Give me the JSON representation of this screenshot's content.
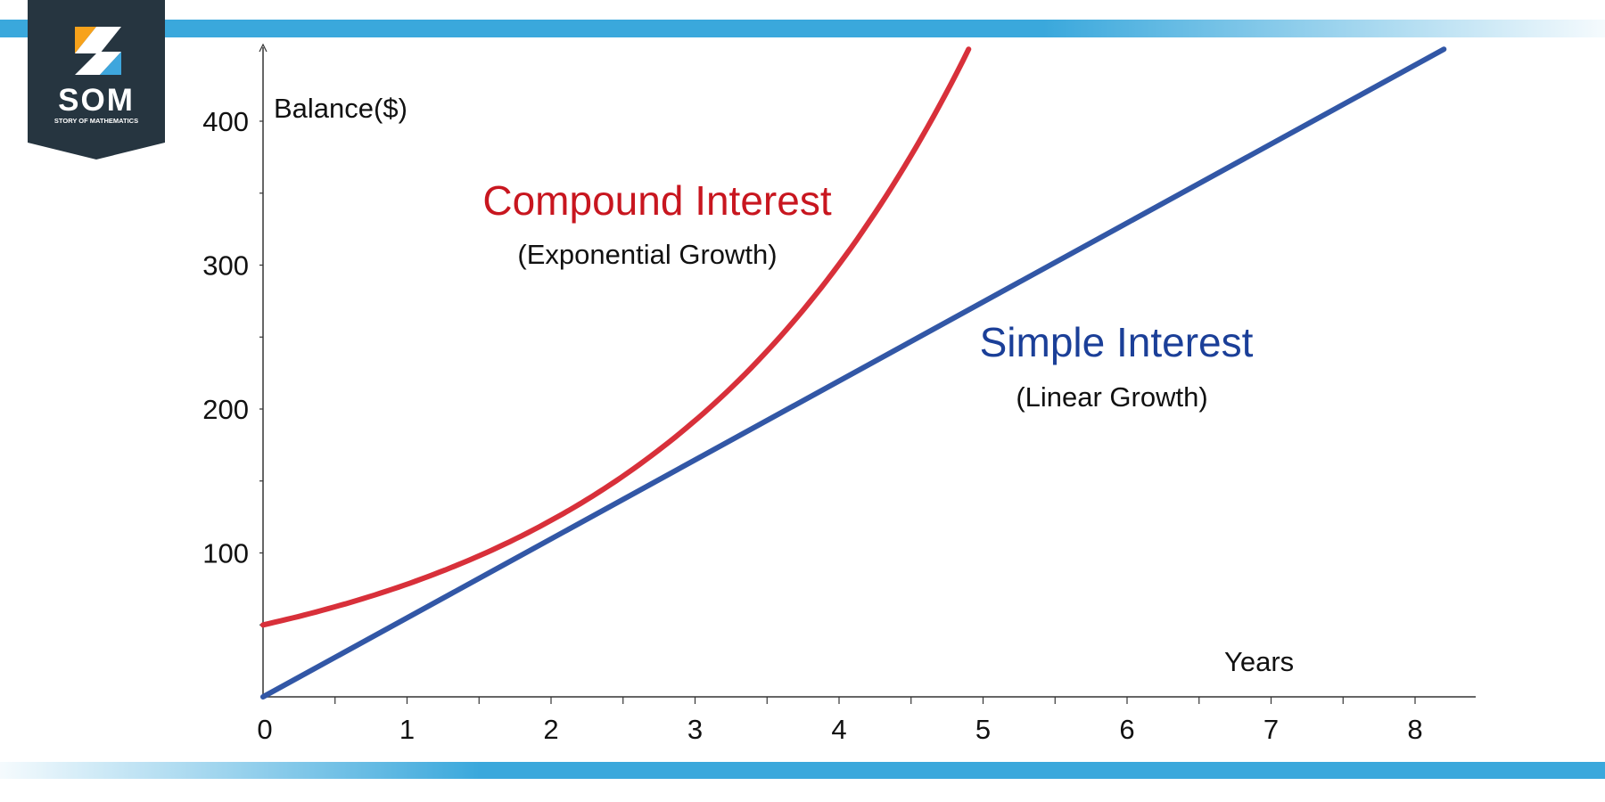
{
  "brand": {
    "name": "SOM",
    "tagline": "STORY OF MATHEMATICS",
    "colors": {
      "badge": "#263540",
      "orange": "#f7a21b",
      "blue": "#3ea6dd"
    }
  },
  "theme": {
    "band_color": "#3aa8dc",
    "compound_color": "#d8303a",
    "simple_color": "#3257a6",
    "compound_label_color": "#c8161f",
    "simple_label_color": "#1b3f98",
    "axis_color": "#333333"
  },
  "chart_data": {
    "type": "line",
    "xlabel": "Years",
    "ylabel": "Balance($)",
    "xlim": [
      0,
      8.4
    ],
    "ylim": [
      0,
      450
    ],
    "x_ticks": [
      0,
      1,
      2,
      3,
      4,
      5,
      6,
      7,
      8
    ],
    "x_tick_labels": [
      "0",
      "1",
      "2",
      "3",
      "4",
      "5",
      "6",
      "7",
      "8"
    ],
    "y_ticks": [
      100,
      200,
      300,
      400
    ],
    "y_tick_labels": [
      "100",
      "200",
      "300",
      "400"
    ],
    "grid": false,
    "series": [
      {
        "name": "Compound Interest",
        "subtitle": "(Exponential Growth)",
        "x": [
          0,
          0.5,
          1,
          1.5,
          2,
          2.5,
          3,
          3.5,
          4,
          4.5,
          4.9
        ],
        "y": [
          50,
          62,
          77,
          96,
          120,
          152,
          192,
          242,
          304,
          380,
          450
        ]
      },
      {
        "name": "Simple Interest",
        "subtitle": "(Linear Growth)",
        "x": [
          0,
          8.2
        ],
        "y": [
          0,
          450
        ]
      }
    ]
  }
}
